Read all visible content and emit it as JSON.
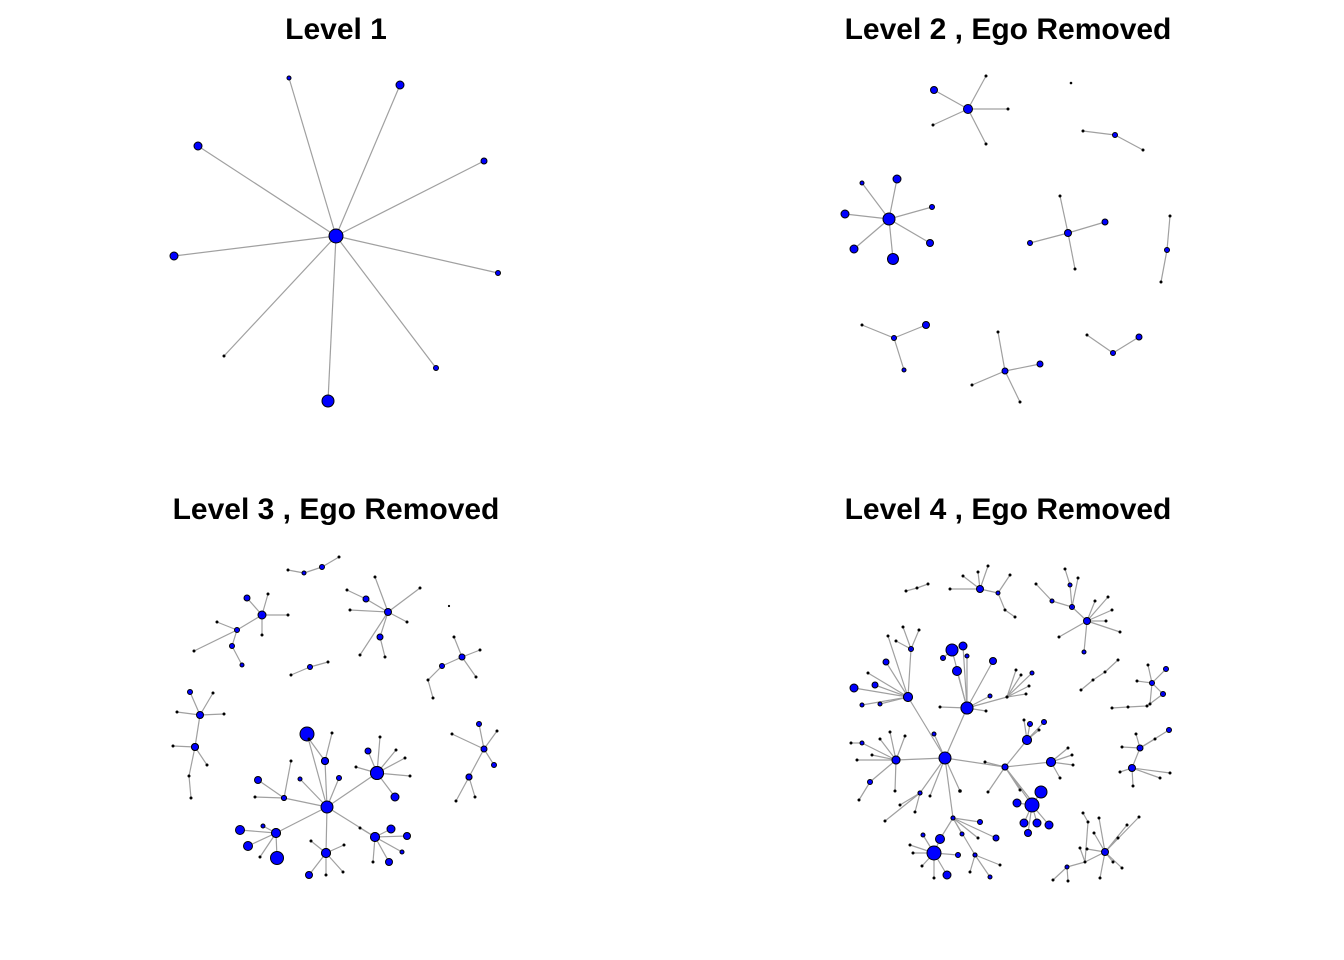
{
  "panels": [
    {
      "title": "Level 1"
    },
    {
      "title": "Level 2 , Ego Removed"
    },
    {
      "title": "Level 3 , Ego Removed"
    },
    {
      "title": "Level 4 , Ego Removed"
    }
  ],
  "colors": {
    "node": "#0000ff",
    "edge": "#a0a0a0",
    "outline": "#000000"
  }
}
